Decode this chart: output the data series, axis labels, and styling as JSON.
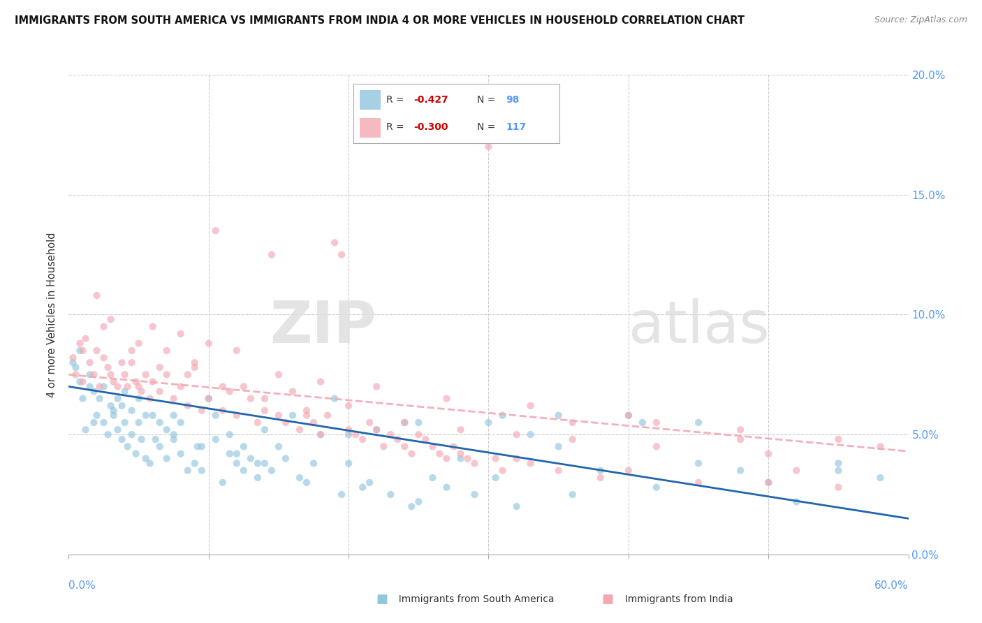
{
  "title": "IMMIGRANTS FROM SOUTH AMERICA VS IMMIGRANTS FROM INDIA 4 OR MORE VEHICLES IN HOUSEHOLD CORRELATION CHART",
  "source": "Source: ZipAtlas.com",
  "ylabel": "4 or more Vehicles in Household",
  "blue_color": "#92c5de",
  "pink_color": "#f4a7b2",
  "blue_line_color": "#2166ac",
  "pink_line_color": "#f4a7b2",
  "background_color": "#ffffff",
  "grid_color": "#cccccc",
  "right_tick_color": "#5599ff",
  "blue_scatter": [
    [
      0.5,
      7.8
    ],
    [
      1.0,
      6.5
    ],
    [
      1.2,
      5.2
    ],
    [
      1.5,
      7.0
    ],
    [
      1.8,
      6.8
    ],
    [
      2.0,
      5.8
    ],
    [
      2.2,
      6.5
    ],
    [
      2.5,
      5.5
    ],
    [
      2.8,
      5.0
    ],
    [
      3.0,
      6.2
    ],
    [
      3.2,
      5.8
    ],
    [
      3.5,
      5.2
    ],
    [
      3.8,
      4.8
    ],
    [
      4.0,
      5.5
    ],
    [
      4.2,
      4.5
    ],
    [
      4.5,
      5.0
    ],
    [
      4.8,
      4.2
    ],
    [
      5.0,
      5.5
    ],
    [
      5.2,
      4.8
    ],
    [
      5.5,
      4.0
    ],
    [
      5.8,
      3.8
    ],
    [
      6.0,
      5.8
    ],
    [
      6.5,
      4.5
    ],
    [
      7.0,
      4.0
    ],
    [
      7.5,
      4.8
    ],
    [
      8.0,
      4.2
    ],
    [
      8.5,
      3.5
    ],
    [
      9.0,
      3.8
    ],
    [
      9.5,
      3.5
    ],
    [
      10.0,
      6.5
    ],
    [
      10.5,
      5.8
    ],
    [
      11.0,
      3.0
    ],
    [
      11.5,
      5.0
    ],
    [
      12.0,
      4.2
    ],
    [
      12.5,
      3.5
    ],
    [
      13.0,
      4.0
    ],
    [
      13.5,
      3.2
    ],
    [
      14.0,
      3.8
    ],
    [
      15.0,
      4.5
    ],
    [
      16.0,
      5.8
    ],
    [
      17.0,
      3.0
    ],
    [
      18.0,
      5.0
    ],
    [
      19.0,
      6.5
    ],
    [
      20.0,
      3.8
    ],
    [
      21.0,
      2.8
    ],
    [
      22.0,
      5.2
    ],
    [
      23.0,
      2.5
    ],
    [
      24.0,
      5.5
    ],
    [
      25.0,
      2.2
    ],
    [
      26.0,
      3.2
    ],
    [
      27.0,
      2.8
    ],
    [
      28.0,
      4.0
    ],
    [
      29.0,
      2.5
    ],
    [
      30.0,
      5.5
    ],
    [
      31.0,
      5.8
    ],
    [
      32.0,
      2.0
    ],
    [
      33.0,
      5.0
    ],
    [
      35.0,
      5.8
    ],
    [
      36.0,
      2.5
    ],
    [
      38.0,
      3.5
    ],
    [
      40.0,
      5.8
    ],
    [
      41.0,
      5.5
    ],
    [
      42.0,
      2.8
    ],
    [
      45.0,
      3.8
    ],
    [
      48.0,
      3.5
    ],
    [
      50.0,
      3.0
    ],
    [
      52.0,
      2.2
    ],
    [
      55.0,
      3.5
    ],
    [
      58.0,
      3.2
    ],
    [
      0.8,
      8.5
    ],
    [
      1.5,
      7.5
    ],
    [
      2.5,
      7.0
    ],
    [
      3.5,
      6.5
    ],
    [
      4.0,
      6.8
    ],
    [
      4.5,
      6.0
    ],
    [
      5.0,
      6.5
    ],
    [
      5.5,
      5.8
    ],
    [
      6.5,
      5.5
    ],
    [
      7.0,
      5.2
    ],
    [
      7.5,
      5.8
    ],
    [
      8.0,
      5.5
    ],
    [
      9.5,
      4.5
    ],
    [
      10.5,
      4.8
    ],
    [
      11.5,
      4.2
    ],
    [
      12.5,
      4.5
    ],
    [
      13.5,
      3.8
    ],
    [
      14.5,
      3.5
    ],
    [
      15.5,
      4.0
    ],
    [
      16.5,
      3.2
    ],
    [
      17.5,
      3.8
    ],
    [
      19.5,
      2.5
    ],
    [
      21.5,
      3.0
    ],
    [
      24.5,
      2.0
    ],
    [
      30.5,
      3.2
    ],
    [
      0.3,
      8.0
    ],
    [
      1.8,
      5.5
    ],
    [
      3.2,
      6.0
    ],
    [
      6.2,
      4.8
    ],
    [
      9.2,
      4.5
    ],
    [
      14.0,
      5.2
    ],
    [
      20.0,
      5.0
    ],
    [
      25.0,
      5.5
    ],
    [
      35.0,
      4.5
    ],
    [
      45.0,
      5.5
    ],
    [
      55.0,
      3.8
    ],
    [
      0.8,
      7.2
    ],
    [
      3.8,
      6.2
    ],
    [
      7.5,
      5.0
    ],
    [
      12.0,
      3.8
    ]
  ],
  "pink_scatter": [
    [
      0.3,
      8.2
    ],
    [
      0.5,
      7.5
    ],
    [
      0.8,
      8.8
    ],
    [
      1.0,
      7.2
    ],
    [
      1.2,
      9.0
    ],
    [
      1.5,
      8.0
    ],
    [
      1.8,
      7.5
    ],
    [
      2.0,
      8.5
    ],
    [
      2.2,
      7.0
    ],
    [
      2.5,
      8.2
    ],
    [
      2.8,
      7.8
    ],
    [
      3.0,
      7.5
    ],
    [
      3.2,
      7.2
    ],
    [
      3.5,
      7.0
    ],
    [
      3.8,
      8.0
    ],
    [
      4.0,
      7.5
    ],
    [
      4.2,
      7.0
    ],
    [
      4.5,
      8.5
    ],
    [
      4.8,
      7.2
    ],
    [
      5.0,
      7.0
    ],
    [
      5.2,
      6.8
    ],
    [
      5.5,
      7.5
    ],
    [
      5.8,
      6.5
    ],
    [
      6.0,
      7.2
    ],
    [
      6.5,
      6.8
    ],
    [
      7.0,
      7.5
    ],
    [
      7.5,
      6.5
    ],
    [
      8.0,
      7.0
    ],
    [
      8.5,
      6.2
    ],
    [
      9.0,
      7.8
    ],
    [
      9.5,
      6.0
    ],
    [
      10.0,
      6.5
    ],
    [
      10.5,
      13.5
    ],
    [
      11.0,
      6.0
    ],
    [
      11.5,
      6.8
    ],
    [
      12.0,
      5.8
    ],
    [
      12.5,
      7.0
    ],
    [
      13.0,
      6.5
    ],
    [
      13.5,
      5.5
    ],
    [
      14.0,
      6.0
    ],
    [
      14.5,
      12.5
    ],
    [
      15.0,
      5.8
    ],
    [
      15.5,
      5.5
    ],
    [
      16.0,
      6.8
    ],
    [
      16.5,
      5.2
    ],
    [
      17.0,
      5.8
    ],
    [
      17.5,
      5.5
    ],
    [
      18.0,
      5.0
    ],
    [
      18.5,
      5.8
    ],
    [
      19.0,
      13.0
    ],
    [
      19.5,
      12.5
    ],
    [
      20.0,
      5.2
    ],
    [
      20.5,
      5.0
    ],
    [
      21.0,
      4.8
    ],
    [
      21.5,
      5.5
    ],
    [
      22.0,
      5.2
    ],
    [
      22.5,
      4.5
    ],
    [
      23.0,
      5.0
    ],
    [
      23.5,
      4.8
    ],
    [
      24.0,
      4.5
    ],
    [
      24.5,
      4.2
    ],
    [
      25.0,
      5.0
    ],
    [
      25.5,
      4.8
    ],
    [
      26.0,
      4.5
    ],
    [
      26.5,
      4.2
    ],
    [
      27.0,
      4.0
    ],
    [
      27.5,
      4.5
    ],
    [
      28.0,
      4.2
    ],
    [
      28.5,
      4.0
    ],
    [
      29.0,
      3.8
    ],
    [
      30.5,
      4.0
    ],
    [
      31.0,
      3.5
    ],
    [
      32.0,
      4.0
    ],
    [
      33.0,
      3.8
    ],
    [
      35.0,
      3.5
    ],
    [
      36.0,
      5.5
    ],
    [
      38.0,
      3.2
    ],
    [
      40.0,
      3.5
    ],
    [
      42.0,
      5.5
    ],
    [
      45.0,
      3.0
    ],
    [
      48.0,
      4.8
    ],
    [
      50.0,
      3.0
    ],
    [
      52.0,
      3.5
    ],
    [
      55.0,
      2.8
    ],
    [
      58.0,
      4.5
    ],
    [
      2.0,
      10.8
    ],
    [
      30.0,
      17.0
    ],
    [
      6.0,
      9.5
    ],
    [
      8.0,
      9.2
    ],
    [
      10.0,
      8.8
    ],
    [
      12.0,
      8.5
    ],
    [
      3.0,
      9.8
    ],
    [
      5.0,
      8.8
    ],
    [
      7.0,
      8.5
    ],
    [
      9.0,
      8.0
    ],
    [
      15.0,
      7.5
    ],
    [
      18.0,
      7.2
    ],
    [
      22.0,
      7.0
    ],
    [
      27.0,
      6.5
    ],
    [
      33.0,
      6.2
    ],
    [
      40.0,
      5.8
    ],
    [
      48.0,
      5.2
    ],
    [
      55.0,
      4.8
    ],
    [
      1.0,
      8.5
    ],
    [
      2.5,
      9.5
    ],
    [
      4.5,
      8.0
    ],
    [
      6.5,
      7.8
    ],
    [
      8.5,
      7.5
    ],
    [
      11.0,
      7.0
    ],
    [
      14.0,
      6.5
    ],
    [
      17.0,
      6.0
    ],
    [
      20.0,
      6.2
    ],
    [
      24.0,
      5.5
    ],
    [
      28.0,
      5.2
    ],
    [
      32.0,
      5.0
    ],
    [
      36.0,
      4.8
    ],
    [
      42.0,
      4.5
    ],
    [
      50.0,
      4.2
    ]
  ],
  "blue_line_x0": 0,
  "blue_line_y0": 7.0,
  "blue_line_x1": 60,
  "blue_line_y1": 1.5,
  "pink_line_x0": 0,
  "pink_line_y0": 7.5,
  "pink_line_x1": 60,
  "pink_line_y1": 4.3,
  "xlim": [
    0,
    60
  ],
  "ylim": [
    0,
    20
  ],
  "ytick_vals": [
    0,
    5,
    10,
    15,
    20
  ],
  "ytick_pct": [
    "0.0%",
    "5.0%",
    "10.0%",
    "15.0%",
    "20.0%"
  ]
}
